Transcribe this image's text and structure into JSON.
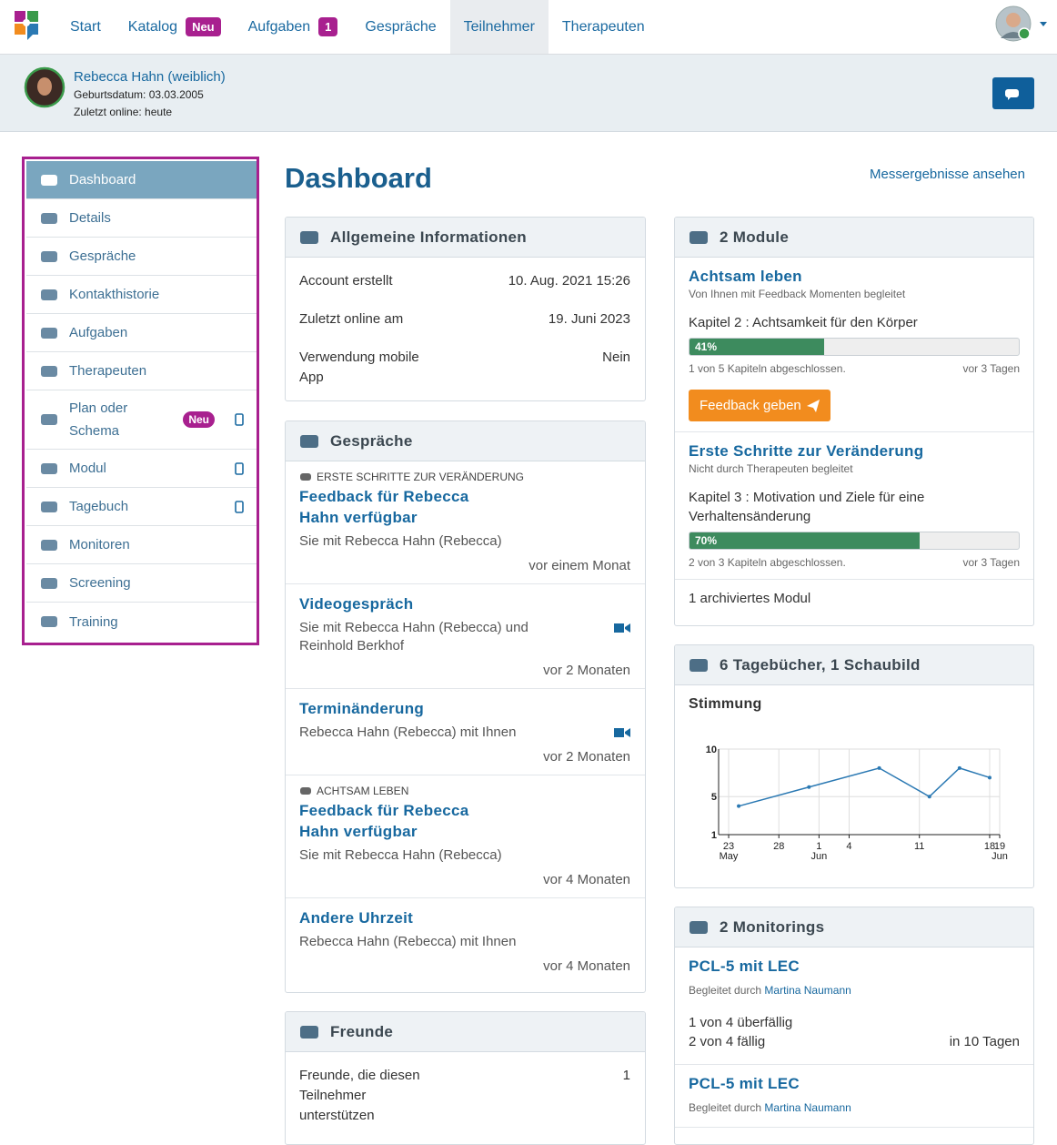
{
  "nav": {
    "items": [
      {
        "label": "Start"
      },
      {
        "label": "Katalog",
        "badge": "Neu"
      },
      {
        "label": "Aufgaben",
        "badge": 1
      },
      {
        "label": "Gespräche"
      },
      {
        "label": "Teilnehmer",
        "active": true
      },
      {
        "label": "Therapeuten"
      }
    ]
  },
  "patient": {
    "name": "Rebecca Hahn (weiblich)",
    "birthdate": "Geburtsdatum: 03.03.2005",
    "last_online": "Zuletzt online: heute"
  },
  "sidebar": {
    "items": [
      {
        "label": "Dashboard",
        "active": true
      },
      {
        "label": "Details"
      },
      {
        "label": "Gespräche"
      },
      {
        "label": "Kontakthistorie"
      },
      {
        "label": "Aufgaben"
      },
      {
        "label": "Therapeuten"
      },
      {
        "label": "Plan oder Schema",
        "badge": "Neu",
        "mobile": true
      },
      {
        "label": "Modul",
        "mobile": true
      },
      {
        "label": "Tagebuch",
        "mobile": true
      },
      {
        "label": "Monitoren"
      },
      {
        "label": "Screening"
      },
      {
        "label": "Training"
      }
    ]
  },
  "main": {
    "title": "Dashboard",
    "link": "Messergebnisse ansehen"
  },
  "info": {
    "title": "Allgemeine Informationen",
    "rows": [
      [
        "Account erstellt",
        "10. Aug. 2021 15:26"
      ],
      [
        "Zuletzt online am",
        "19. Juni 2023"
      ],
      [
        "Verwendung mobile App",
        "Nein"
      ]
    ]
  },
  "conversations": {
    "title": "Gespräche",
    "items": [
      {
        "module": "ERSTE SCHRITTE ZUR VERÄNDERUNG",
        "title": "Feedback für Rebecca Hahn verfügbar",
        "text": "Sie mit Rebecca Hahn (Rebecca)",
        "time": "vor einem Monat"
      },
      {
        "title": "Videogespräch",
        "text": "Sie mit Rebecca Hahn (Rebecca) und Reinhold Berkhof",
        "time": "vor 2 Monaten",
        "video": true
      },
      {
        "title": "Terminänderung",
        "text": "Rebecca Hahn (Rebecca) mit Ihnen",
        "time": "vor 2 Monaten",
        "video": true
      },
      {
        "module": "ACHTSAM LEBEN",
        "title": "Feedback für Rebecca Hahn verfügbar",
        "text": "Sie mit Rebecca Hahn (Rebecca)",
        "time": "vor 4 Monaten"
      },
      {
        "title": "Andere Uhrzeit",
        "text": "Rebecca Hahn (Rebecca) mit Ihnen",
        "time": "vor 4 Monaten"
      }
    ]
  },
  "friends": {
    "title": "Freunde",
    "rows": [
      [
        "Freunde, die diesen Teilnehmer unterstützen",
        1
      ]
    ]
  },
  "modules": {
    "title": "2 Module",
    "items": [
      {
        "title": "Achtsam leben",
        "subtitle": "Von Ihnen mit Feedback Momenten begleitet",
        "chapter": "Kapitel 2 : Achtsamkeit für den Körper",
        "progress": 41,
        "progress_label": "41%",
        "done": "1 von 5 Kapiteln abgeschlossen.",
        "time": "vor 3 Tagen",
        "button": "Feedback geben"
      },
      {
        "title": "Erste Schritte zur Veränderung",
        "subtitle": "Nicht durch Therapeuten begleitet",
        "chapter": "Kapitel 3 : Motivation und Ziele für eine Verhaltensänderung",
        "progress": 70,
        "progress_label": "70%",
        "done": "2 von 3 Kapiteln abgeschlossen.",
        "time": "vor 3 Tagen"
      }
    ],
    "archived": "1 archiviertes Modul"
  },
  "diaries": {
    "title": "6 Tagebücher, 1 Schaubild",
    "chart": {
      "type": "line",
      "title": "Stimmung",
      "x": [
        "May 24",
        "May 31",
        "Jun 7",
        "Jun 12",
        "Jun 15",
        "Jun 18"
      ],
      "values": [
        4,
        6,
        8,
        5,
        8,
        7
      ],
      "color": "#2b79b3",
      "xlim": [
        "May 22",
        "Jun 19"
      ],
      "ylim": [
        1,
        10
      ],
      "yticks": [
        1,
        5,
        10
      ],
      "xticks": [
        {
          "value": "May 23",
          "label": "23",
          "month": "May"
        },
        {
          "value": "May 28",
          "label": "28"
        },
        {
          "value": "Jun 1",
          "label": "1",
          "month": "Jun"
        },
        {
          "value": "Jun 4",
          "label": "4"
        },
        {
          "value": "Jun 11",
          "label": "11"
        },
        {
          "value": "Jun 18",
          "label": "18"
        },
        {
          "value": "Jun 19",
          "label": "19",
          "month": "Jun"
        }
      ],
      "grid": true
    }
  },
  "monitorings": {
    "title": "2 Monitorings",
    "items": [
      {
        "title": "PCL-5 mit LEC",
        "by": "Begleitet durch",
        "therapist": "Martina Naumann",
        "lines": [
          "1 von 4 überfällig",
          "2 von 4 fällig"
        ],
        "due": "in 10 Tagen"
      },
      {
        "title": "PCL-5 mit LEC",
        "by": "Begleitet durch",
        "therapist": "Martina Naumann"
      }
    ]
  }
}
